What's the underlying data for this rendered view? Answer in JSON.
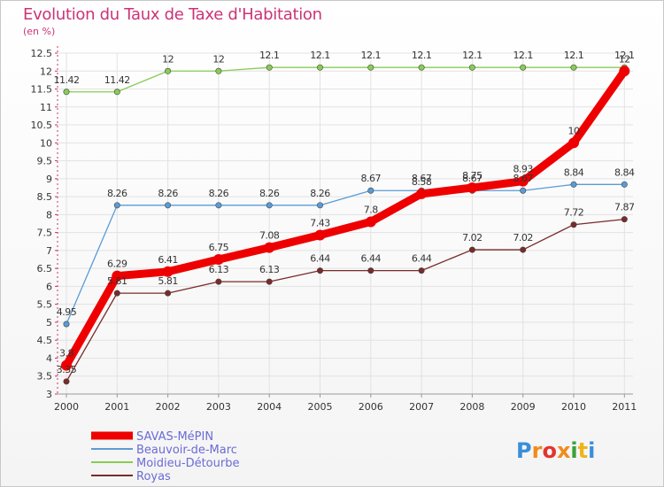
{
  "chart_data": {
    "type": "line",
    "title": "Evolution du Taux de Taxe d'Habitation",
    "subtitle": "(en %)",
    "x": [
      "2000",
      "2001",
      "2002",
      "2003",
      "2004",
      "2005",
      "2006",
      "2007",
      "2008",
      "2009",
      "2010",
      "2011"
    ],
    "yticks": [
      "3",
      "3.5",
      "4",
      "4.5",
      "5",
      "5.5",
      "6",
      "6.5",
      "7",
      "7.5",
      "8",
      "8.5",
      "9",
      "9.5",
      "10",
      "10.5",
      "11",
      "11.5",
      "12",
      "12.5"
    ],
    "ylim": [
      3,
      12.5
    ],
    "series": [
      {
        "name": "SAVAS-MéPIN",
        "color": "#ee0000",
        "values": [
          3.8,
          6.29,
          6.41,
          6.75,
          7.08,
          7.43,
          7.8,
          8.58,
          8.75,
          8.93,
          10,
          12
        ],
        "labels": [
          "3.8",
          "6.29",
          "6.41",
          "6.75",
          "7.08",
          "7.43",
          "7.8",
          "8.58",
          "8.75",
          "8.93",
          "10",
          "12"
        ]
      },
      {
        "name": "Beauvoir-de-Marc",
        "color": "#5a9bd5",
        "values": [
          4.95,
          8.26,
          8.26,
          8.26,
          8.26,
          8.26,
          8.67,
          8.67,
          8.67,
          8.67,
          8.84,
          8.84
        ],
        "labels": [
          "4.95",
          "8.26",
          "8.26",
          "8.26",
          "8.26",
          "8.26",
          "8.67",
          "8.67",
          "8.67",
          "8.67",
          "8.84",
          "8.84"
        ]
      },
      {
        "name": "Moidieu-Détourbe",
        "color": "#88cc55",
        "values": [
          11.42,
          11.42,
          12,
          12,
          12.1,
          12.1,
          12.1,
          12.1,
          12.1,
          12.1,
          12.1,
          12.1
        ],
        "labels": [
          "11.42",
          "11.42",
          "12",
          "12",
          "12.1",
          "12.1",
          "12.1",
          "12.1",
          "12.1",
          "12.1",
          "12.1",
          "12.1"
        ]
      },
      {
        "name": "Royas",
        "color": "#7a2a2a",
        "values": [
          3.35,
          5.81,
          5.81,
          6.13,
          6.13,
          6.44,
          6.44,
          6.44,
          7.02,
          7.02,
          7.72,
          7.87
        ],
        "labels": [
          "3.35",
          "5.81",
          "5.81",
          "6.13",
          "6.13",
          "6.44",
          "6.44",
          "6.44",
          "7.02",
          "7.02",
          "7.72",
          "7.87"
        ]
      }
    ],
    "legend_position": "bottom-left",
    "grid": true
  },
  "logo": {
    "text": "Proxiti"
  }
}
